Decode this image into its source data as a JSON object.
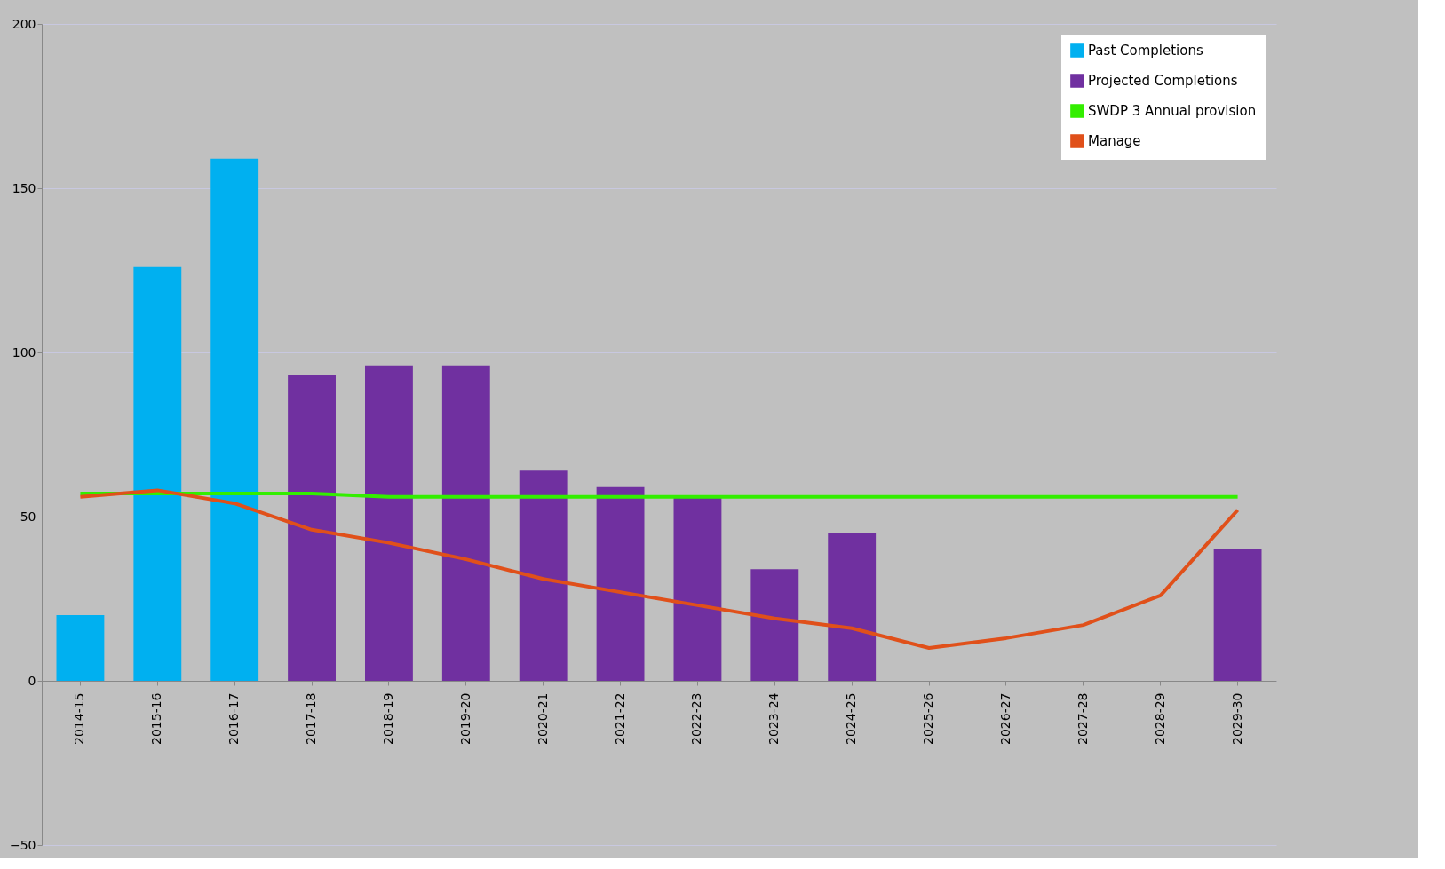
{
  "chart_data": {
    "type": "bar",
    "categories": [
      "2014-15",
      "2015-16",
      "2016-17",
      "2017-18",
      "2018-19",
      "2019-20",
      "2020-21",
      "2021-22",
      "2022-23",
      "2023-24",
      "2024-25",
      "2025-26",
      "2026-27",
      "2027-28",
      "2028-29",
      "2029-30"
    ],
    "series": [
      {
        "name": "Past Completions",
        "color": "#00b0f0",
        "values": [
          20,
          126,
          159,
          null,
          null,
          null,
          null,
          null,
          null,
          null,
          null,
          null,
          null,
          null,
          null,
          null
        ]
      },
      {
        "name": "Projected Completions",
        "color": "#7030a0",
        "values": [
          null,
          null,
          null,
          93,
          96,
          96,
          64,
          59,
          56,
          34,
          45,
          null,
          null,
          null,
          null,
          40
        ]
      },
      {
        "name": "SWDP 3 Annual provision",
        "type": "line",
        "color": "#33ee00",
        "values": [
          57,
          57,
          57,
          57,
          56,
          56,
          56,
          56,
          56,
          56,
          56,
          56,
          56,
          56,
          56,
          56
        ]
      },
      {
        "name": "Manage",
        "type": "line",
        "color": "#e0501a",
        "values": [
          56,
          58,
          54,
          46,
          42,
          37,
          31,
          27,
          23,
          19,
          16,
          10,
          13,
          17,
          26,
          52
        ]
      }
    ],
    "ylim": [
      -50,
      200
    ],
    "yticks": [
      -50,
      0,
      50,
      100,
      150,
      200
    ],
    "grid": "y",
    "legend": "top right"
  }
}
